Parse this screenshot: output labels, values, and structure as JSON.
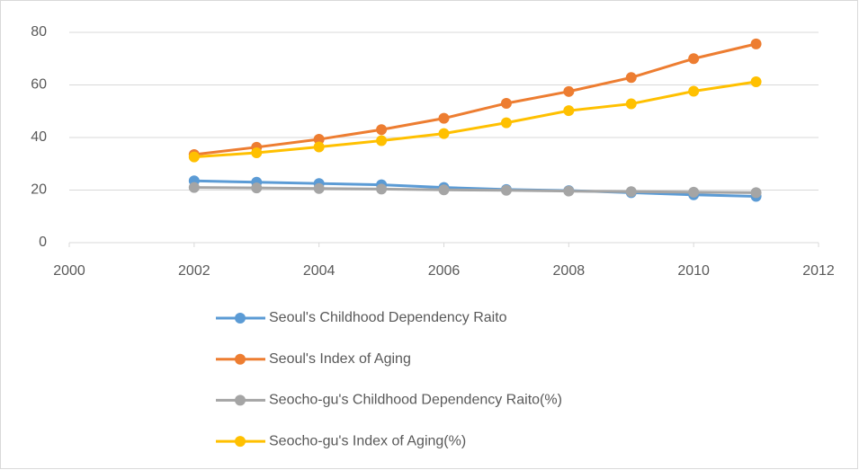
{
  "chart_data": {
    "type": "line",
    "x": [
      2002,
      2003,
      2004,
      2005,
      2006,
      2007,
      2008,
      2009,
      2010,
      2011
    ],
    "series": [
      {
        "name": "Seoul's Childhood Dependency Raito",
        "color": "#5b9bd5",
        "values": [
          23.5,
          23,
          22.5,
          22,
          21,
          20.2,
          19.8,
          19,
          18.2,
          17.6
        ]
      },
      {
        "name": "Seoul's Index of Aging",
        "color": "#ed7d31",
        "values": [
          33.5,
          36.3,
          39.3,
          43,
          47.3,
          53,
          57.5,
          62.8,
          70,
          75.6
        ]
      },
      {
        "name": "Seocho-gu's Childhood Dependency Raito(%)",
        "color": "#a5a5a5",
        "values": [
          21,
          20.8,
          20.6,
          20.4,
          20.1,
          19.9,
          19.6,
          19.4,
          19.2,
          19
        ]
      },
      {
        "name": "Seocho-gu's Index of Aging(%)",
        "color": "#ffc000",
        "values": [
          32.6,
          34.2,
          36.4,
          38.8,
          41.5,
          45.6,
          50.2,
          52.8,
          57.6,
          61.2
        ]
      }
    ],
    "xlim": [
      2000,
      2012
    ],
    "xticks": [
      2000,
      2002,
      2004,
      2006,
      2008,
      2010,
      2012
    ],
    "ylim": [
      0,
      80
    ],
    "yticks": [
      0,
      20,
      40,
      60,
      80
    ],
    "grid": true
  }
}
